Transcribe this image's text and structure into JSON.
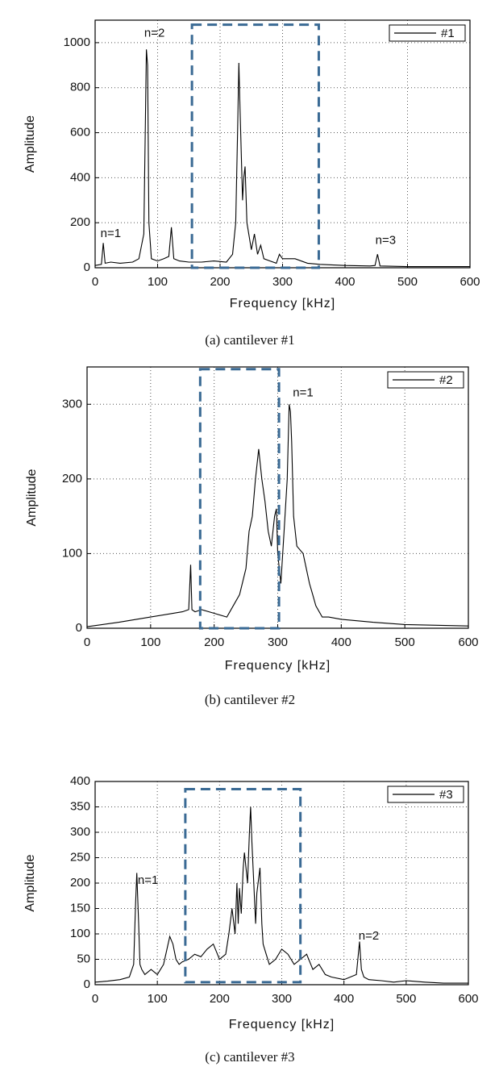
{
  "chart_data": [
    {
      "type": "line",
      "caption": "(a)  cantilever  #1",
      "xlabel": "Frequency [kHz]",
      "ylabel": "Amplitude",
      "xlim": [
        0,
        600
      ],
      "xticks": [
        0,
        100,
        200,
        300,
        400,
        500,
        600
      ],
      "ylim": [
        0,
        1100
      ],
      "yticks": [
        0,
        200,
        400,
        600,
        800,
        1000
      ],
      "grid": true,
      "legend": "upper right",
      "x": [
        0,
        10,
        13,
        16,
        25,
        40,
        60,
        70,
        78,
        82,
        84,
        86,
        90,
        100,
        110,
        118,
        122,
        126,
        135,
        150,
        170,
        190,
        210,
        220,
        225,
        228,
        230,
        232,
        236,
        238,
        240,
        243,
        246,
        250,
        255,
        260,
        265,
        270,
        280,
        290,
        295,
        300,
        320,
        340,
        360,
        400,
        440,
        448,
        452,
        456,
        500,
        550,
        600
      ],
      "series": [
        {
          "name": "#1",
          "color": "#000000",
          "values": [
            10,
            15,
            110,
            20,
            25,
            20,
            25,
            40,
            150,
            970,
            900,
            200,
            40,
            30,
            40,
            50,
            180,
            40,
            30,
            25,
            25,
            30,
            25,
            60,
            200,
            600,
            910,
            700,
            300,
            400,
            450,
            200,
            150,
            80,
            150,
            60,
            100,
            40,
            30,
            20,
            60,
            40,
            40,
            20,
            15,
            10,
            8,
            10,
            60,
            8,
            5,
            5,
            5
          ]
        }
      ],
      "annotations": [
        {
          "text": "n=1",
          "x": 25,
          "y": 150
        },
        {
          "text": "n=2",
          "x": 95,
          "y": 1040
        },
        {
          "text": "n=3",
          "x": 465,
          "y": 120
        }
      ],
      "highlight_box": {
        "x": [
          155,
          358
        ],
        "y": [
          0,
          1080
        ],
        "color": "#3a6a94"
      }
    },
    {
      "type": "line",
      "caption": "(b)  cantilever  #2",
      "xlabel": "Frequency [kHz]",
      "ylabel": "Amplitude",
      "xlim": [
        0,
        600
      ],
      "xticks": [
        0,
        100,
        200,
        300,
        400,
        500,
        600
      ],
      "ylim": [
        0,
        350
      ],
      "yticks": [
        0,
        100,
        200,
        300
      ],
      "grid": true,
      "legend": "upper right",
      "x": [
        0,
        50,
        100,
        150,
        160,
        163,
        165,
        170,
        180,
        200,
        220,
        230,
        240,
        250,
        255,
        260,
        265,
        270,
        275,
        280,
        285,
        290,
        295,
        298,
        300,
        305,
        310,
        315,
        318,
        320,
        322,
        325,
        330,
        340,
        350,
        355,
        360,
        370,
        380,
        400,
        450,
        500,
        550,
        600
      ],
      "series": [
        {
          "name": "#2",
          "color": "#000000",
          "values": [
            2,
            8,
            15,
            22,
            25,
            85,
            25,
            22,
            25,
            20,
            15,
            30,
            45,
            80,
            130,
            150,
            200,
            240,
            200,
            170,
            130,
            110,
            150,
            160,
            100,
            60,
            130,
            200,
            300,
            290,
            250,
            150,
            110,
            100,
            60,
            45,
            30,
            15,
            15,
            12,
            8,
            5,
            4,
            3
          ]
        }
      ],
      "annotations": [
        {
          "text": "n=1",
          "x": 340,
          "y": 315
        }
      ],
      "highlight_box": {
        "x": [
          178,
          302
        ],
        "y": [
          0,
          347
        ],
        "color": "#3a6a94"
      }
    },
    {
      "type": "line",
      "caption": "(c)  cantilever  #3",
      "xlabel": "Frequency [kHz]",
      "ylabel": "Amplitude",
      "xlim": [
        0,
        600
      ],
      "xticks": [
        0,
        100,
        200,
        300,
        400,
        500,
        600
      ],
      "ylim": [
        0,
        400
      ],
      "yticks": [
        0,
        50,
        100,
        150,
        200,
        250,
        300,
        350,
        400
      ],
      "grid": true,
      "legend": "upper right",
      "x": [
        0,
        20,
        40,
        55,
        62,
        65,
        67,
        70,
        72,
        75,
        80,
        90,
        100,
        110,
        120,
        125,
        130,
        135,
        140,
        150,
        160,
        170,
        180,
        190,
        200,
        210,
        215,
        220,
        225,
        228,
        230,
        232,
        235,
        238,
        240,
        245,
        248,
        250,
        252,
        255,
        258,
        260,
        265,
        268,
        270,
        275,
        280,
        290,
        300,
        310,
        320,
        330,
        340,
        350,
        360,
        370,
        380,
        400,
        420,
        425,
        428,
        432,
        440,
        460,
        480,
        500,
        530,
        560,
        600
      ],
      "series": [
        {
          "name": "#3",
          "color": "#000000",
          "values": [
            5,
            7,
            10,
            15,
            40,
            160,
            220,
            120,
            40,
            30,
            20,
            30,
            20,
            40,
            95,
            80,
            50,
            40,
            45,
            50,
            60,
            55,
            70,
            80,
            50,
            60,
            100,
            150,
            100,
            200,
            120,
            190,
            140,
            230,
            260,
            200,
            300,
            350,
            280,
            200,
            120,
            180,
            230,
            120,
            80,
            60,
            40,
            50,
            70,
            60,
            40,
            50,
            60,
            30,
            40,
            20,
            15,
            10,
            20,
            85,
            30,
            15,
            10,
            8,
            5,
            8,
            5,
            3,
            3
          ]
        }
      ],
      "annotations": [
        {
          "text": "n=1",
          "x": 85,
          "y": 205
        },
        {
          "text": "n=2",
          "x": 440,
          "y": 95
        }
      ],
      "highlight_box": {
        "x": [
          145,
          330
        ],
        "y": [
          5,
          385
        ],
        "color": "#3a6a94"
      }
    }
  ]
}
